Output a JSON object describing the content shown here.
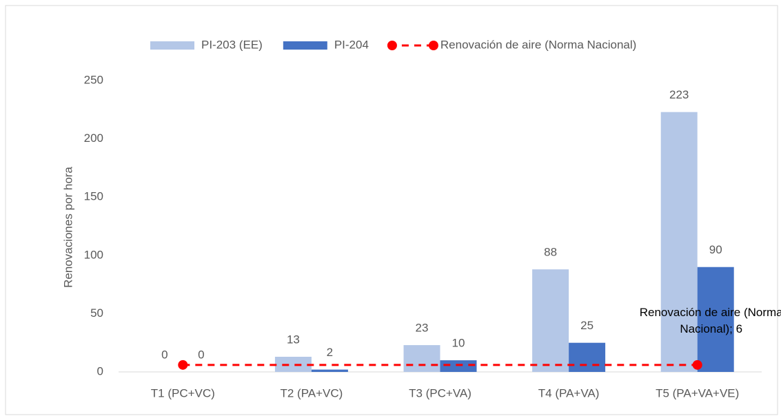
{
  "chart_data": {
    "type": "bar",
    "y_label": "Renovaciones por hora",
    "categories": [
      "T1  (PC+VC)",
      "T2 (PA+VC)",
      "T3 (PC+VA)",
      "T4  (PA+VA)",
      "T5 (PA+VA+VE)"
    ],
    "series": [
      {
        "name": "PI-203 (EE)",
        "color": "#b4c7e7",
        "values": [
          0,
          13,
          23,
          88,
          223
        ]
      },
      {
        "name": "PI-204",
        "color": "#4472c4",
        "values": [
          0,
          2,
          10,
          25,
          90
        ]
      },
      {
        "name": "Renovación de aire (Norma Nacional)",
        "color": "#ff0000",
        "type": "line",
        "values": [
          6,
          6,
          6,
          6,
          6
        ],
        "value_labels": [
          null,
          null,
          null,
          null,
          "Renovación de aire (Norma Nacional); 6"
        ]
      }
    ],
    "ylim": [
      0,
      250
    ],
    "yticks": [
      0,
      50,
      100,
      150,
      200,
      250
    ],
    "legend": "top",
    "grid": false
  }
}
